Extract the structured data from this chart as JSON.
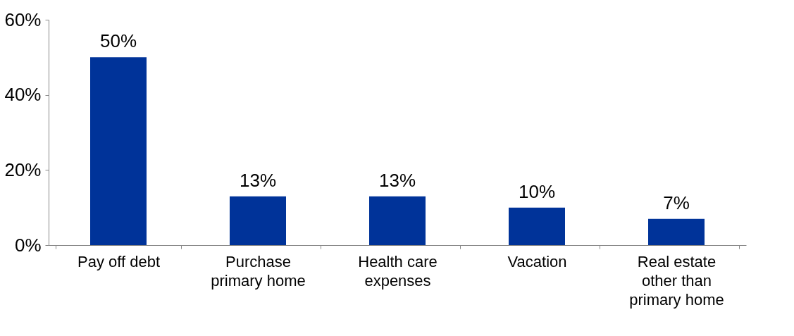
{
  "chart_data": {
    "type": "bar",
    "categories": [
      "Pay off debt",
      "Purchase primary home",
      "Health care expenses",
      "Vacation",
      "Real estate other than primary home"
    ],
    "values": [
      50,
      13,
      13,
      10,
      7
    ],
    "value_labels": [
      "50%",
      "13%",
      "13%",
      "10%",
      "7%"
    ],
    "color": "#003399",
    "ylim": [
      0,
      60
    ],
    "yticks": [
      {
        "value": 0,
        "label": "0%"
      },
      {
        "value": 20,
        "label": "20%"
      },
      {
        "value": 40,
        "label": "40%"
      },
      {
        "value": 60,
        "label": "60%"
      }
    ],
    "grid": false
  }
}
